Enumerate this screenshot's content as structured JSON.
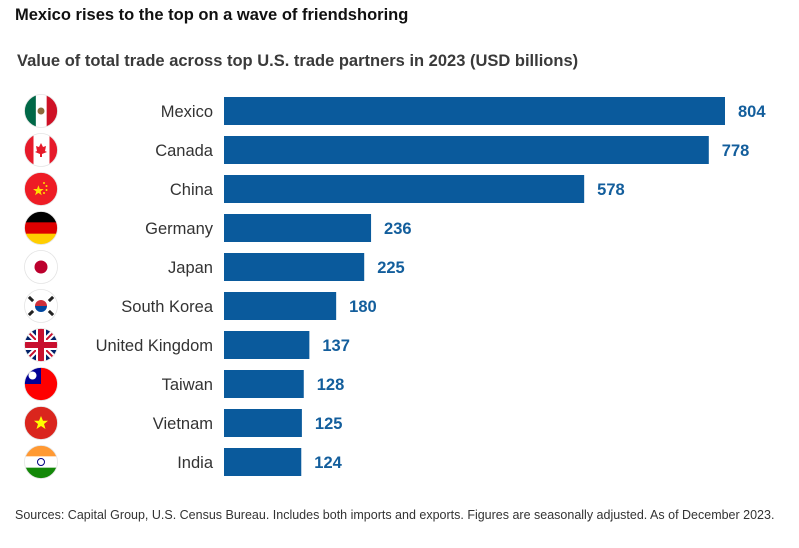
{
  "header": {
    "title": "Mexico rises to the top on a wave of friendshoring"
  },
  "footnote": "Sources: Capital Group, U.S. Census Bureau. Includes both imports and exports. Figures are seasonally adjusted. As of December 2023.",
  "colors": {
    "bar": "#0a5a9c",
    "value_label": "#135e9c"
  },
  "chart_data": {
    "type": "bar",
    "orientation": "horizontal",
    "title": "Value of total trade across top U.S. trade partners in 2023 (USD billions)",
    "xlabel": "",
    "ylabel": "",
    "xlim": [
      0,
      804
    ],
    "grid": false,
    "legend": "none",
    "categories": [
      "Mexico",
      "Canada",
      "China",
      "Germany",
      "Japan",
      "South Korea",
      "United Kingdom",
      "Taiwan",
      "Vietnam",
      "India"
    ],
    "values": [
      804,
      778,
      578,
      236,
      225,
      180,
      137,
      128,
      125,
      124
    ],
    "data_labels": [
      "804",
      "778",
      "578",
      "236",
      "225",
      "180",
      "137",
      "128",
      "125",
      "124"
    ],
    "flag_icons": [
      "mexico-flag-icon",
      "canada-flag-icon",
      "china-flag-icon",
      "germany-flag-icon",
      "japan-flag-icon",
      "south-korea-flag-icon",
      "united-kingdom-flag-icon",
      "taiwan-flag-icon",
      "vietnam-flag-icon",
      "india-flag-icon"
    ]
  }
}
